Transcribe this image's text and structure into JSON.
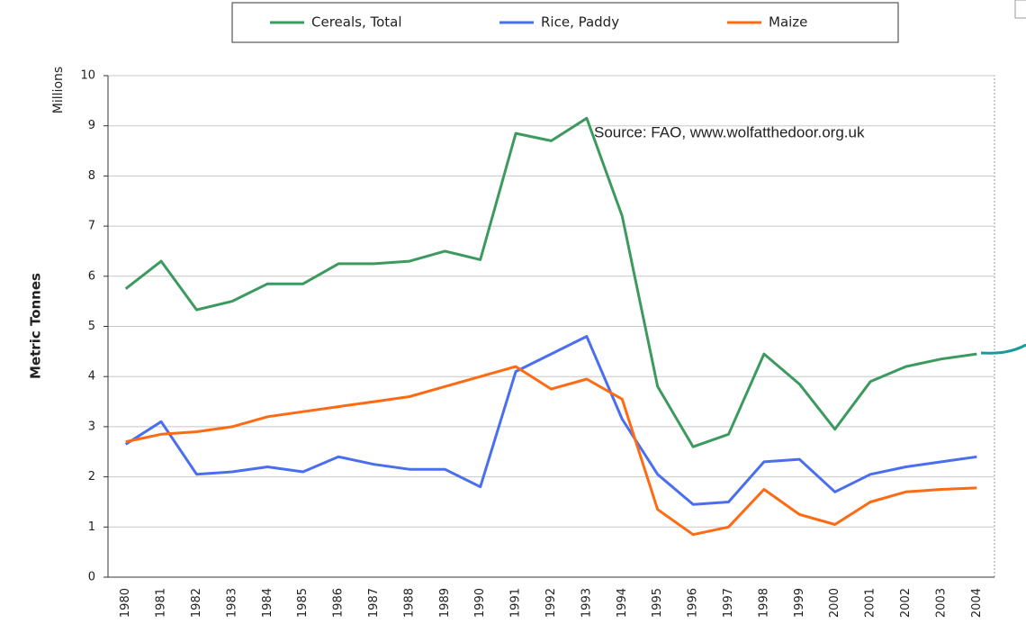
{
  "chart_data": {
    "type": "line",
    "y_label": "Metric Tonnes",
    "y_unit": "Millions",
    "annotation": "Source: FAO, www.wolfatthedoor.org.uk",
    "categories": [
      "1980",
      "1981",
      "1982",
      "1983",
      "1984",
      "1985",
      "1986",
      "1987",
      "1988",
      "1989",
      "1990",
      "1991",
      "1992",
      "1993",
      "1994",
      "1995",
      "1996",
      "1997",
      "1998",
      "1999",
      "2000",
      "2001",
      "2002",
      "2003",
      "2004"
    ],
    "series": [
      {
        "name": "Cereals, Total",
        "color": "#3d9a5f",
        "values": [
          5.75,
          6.3,
          5.33,
          5.5,
          5.85,
          5.85,
          6.25,
          6.25,
          6.3,
          6.5,
          6.33,
          8.85,
          8.7,
          9.15,
          7.2,
          3.8,
          2.6,
          2.85,
          4.45,
          3.85,
          2.95,
          3.9,
          4.2,
          4.35,
          4.45
        ]
      },
      {
        "name": "Rice, Paddy",
        "color": "#4a6ef0",
        "values": [
          2.65,
          3.1,
          2.05,
          2.1,
          2.2,
          2.1,
          2.4,
          2.25,
          2.15,
          2.15,
          1.8,
          4.1,
          4.45,
          4.8,
          3.15,
          2.05,
          1.45,
          1.5,
          2.3,
          2.35,
          1.7,
          2.05,
          2.2,
          2.3,
          2.4
        ]
      },
      {
        "name": "Maize",
        "color": "#ff6a13",
        "values": [
          2.7,
          2.85,
          2.9,
          3.0,
          3.2,
          3.3,
          3.4,
          3.5,
          3.6,
          3.8,
          4.0,
          4.2,
          3.75,
          3.95,
          3.55,
          1.35,
          0.85,
          1.0,
          1.75,
          1.25,
          1.05,
          1.5,
          1.7,
          1.75,
          1.78
        ]
      }
    ],
    "ylim": [
      0,
      10
    ],
    "yticks": [
      0,
      1,
      2,
      3,
      4,
      5,
      6,
      7,
      8,
      9,
      10
    ],
    "grid": true,
    "legend": "top"
  }
}
